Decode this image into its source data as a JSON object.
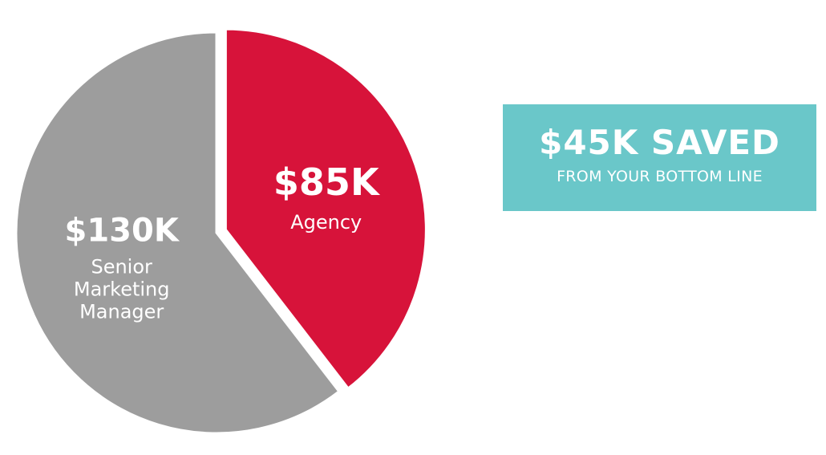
{
  "chart_data": {
    "type": "pie",
    "slices": [
      {
        "value": 85,
        "value_label": "$85K",
        "label_lines": [
          "Agency"
        ],
        "color": "#d7133a",
        "exploded": true
      },
      {
        "value": 130,
        "value_label": "$130K",
        "label_lines": [
          "Senior",
          "Marketing",
          "Manager"
        ],
        "color": "#9d9d9d",
        "exploded": false
      }
    ]
  },
  "callout": {
    "headline": "$45K SAVED",
    "subline": "FROM YOUR BOTTOM LINE",
    "color": "#6ac7c9"
  }
}
